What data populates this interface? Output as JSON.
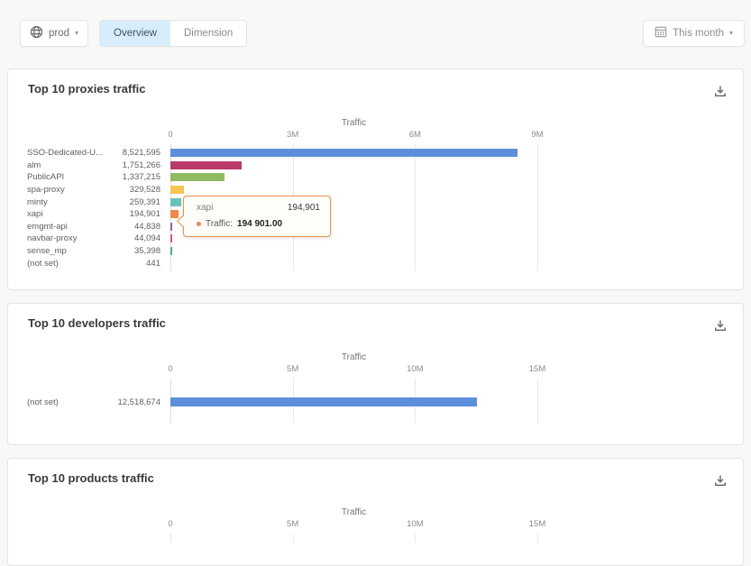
{
  "header": {
    "environment": {
      "label": "prod"
    },
    "tabs": [
      {
        "label": "Overview"
      },
      {
        "label": "Dimension"
      }
    ],
    "active_tab": "Overview",
    "date_range": {
      "label": "This month"
    }
  },
  "chart_data": {
    "note": "see charts array"
  },
  "charts": [
    {
      "type": "bar",
      "title": "Top 10 proxies traffic",
      "axis": {
        "title": "Traffic",
        "ticks": [
          "0",
          "3M",
          "6M",
          "9M"
        ],
        "max": 9000000
      },
      "rows": [
        {
          "name": "SSO-Dedicated-U...",
          "value_label": "8,521,595",
          "value": 8521595,
          "color": "#5B8FD9"
        },
        {
          "name": "alm",
          "value_label": "1,751,266",
          "value": 1751266,
          "color": "#B83A68"
        },
        {
          "name": "PublicAPI",
          "value_label": "1,337,215",
          "value": 1337215,
          "color": "#8FBB60"
        },
        {
          "name": "spa-proxy",
          "value_label": "329,528",
          "value": 329528,
          "color": "#F7C650"
        },
        {
          "name": "minty",
          "value_label": "259,391",
          "value": 259391,
          "color": "#68C2BC"
        },
        {
          "name": "xapi",
          "value_label": "194,901",
          "value": 194901,
          "color": "#F0874C"
        },
        {
          "name": "emgmt-api",
          "value_label": "44,838",
          "value": 44838,
          "color": "#9160A8"
        },
        {
          "name": "navbar-proxy",
          "value_label": "44,094",
          "value": 44094,
          "color": "#DE5277"
        },
        {
          "name": "sense_mp",
          "value_label": "35,398",
          "value": 35398,
          "color": "#56A492"
        },
        {
          "name": "(not set)",
          "value_label": "441",
          "value": 441,
          "color": "#5B8FD9"
        }
      ],
      "tooltip": {
        "name": "xapi",
        "value": "194,901",
        "metric_label": "Traffic:",
        "metric_value": "194 901.00",
        "accent_color": "#E8914F"
      }
    },
    {
      "type": "bar",
      "title": "Top 10 developers traffic",
      "axis": {
        "title": "Traffic",
        "ticks": [
          "0",
          "5M",
          "10M",
          "15M"
        ],
        "max": 15000000
      },
      "rows": [
        {
          "name": "(not set)",
          "value_label": "12,518,674",
          "value": 12518674,
          "color": "#5B8FD9"
        }
      ]
    },
    {
      "type": "bar",
      "title": "Top 10 products traffic",
      "axis": {
        "title": "Traffic",
        "ticks": [
          "0",
          "5M",
          "10M",
          "15M"
        ],
        "max": 15000000
      },
      "rows": []
    }
  ]
}
